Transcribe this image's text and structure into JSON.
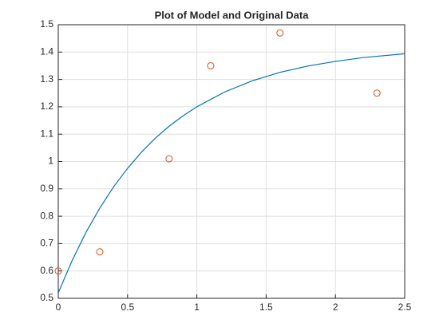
{
  "chart_data": {
    "type": "line",
    "title": "Plot of Model and Original Data",
    "xlim": [
      0,
      2.5
    ],
    "xticks": [
      0,
      0.5,
      1,
      1.5,
      2,
      2.5
    ],
    "ylim": [
      0.5,
      1.5
    ],
    "yticks": [
      0.5,
      0.6,
      0.7,
      0.8,
      0.9,
      1,
      1.1,
      1.2,
      1.3,
      1.4,
      1.5
    ],
    "grid": true,
    "series": [
      {
        "type": "line",
        "color": "#0072bd",
        "x": [
          0,
          0.1,
          0.2,
          0.3,
          0.4,
          0.5,
          0.6,
          0.7,
          0.8,
          0.9,
          1.0,
          1.2,
          1.4,
          1.6,
          1.8,
          2.0,
          2.2,
          2.5
        ],
        "values": [
          0.52,
          0.638,
          0.741,
          0.83,
          0.908,
          0.975,
          1.034,
          1.085,
          1.129,
          1.167,
          1.2,
          1.254,
          1.295,
          1.326,
          1.349,
          1.366,
          1.38,
          1.394
        ]
      },
      {
        "type": "scatter",
        "color": "#d95319",
        "x": [
          0,
          0.3,
          0.8,
          1.1,
          1.6,
          2.3
        ],
        "values": [
          0.6,
          0.67,
          1.01,
          1.35,
          1.47,
          1.25
        ]
      }
    ]
  }
}
